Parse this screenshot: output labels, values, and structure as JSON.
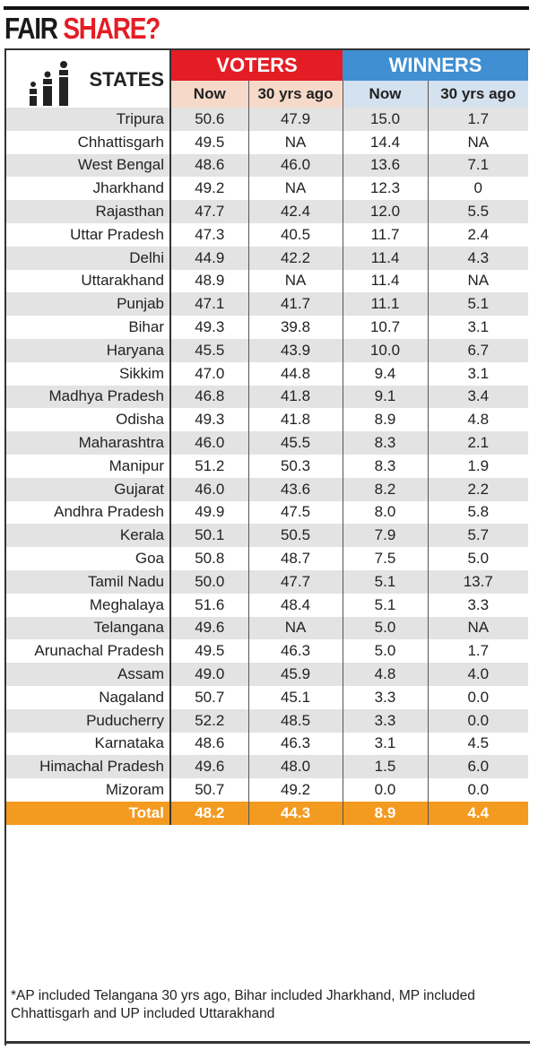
{
  "title": {
    "part1": "FAIR",
    "part2": "SHARE?"
  },
  "colors": {
    "voters": "#e41d25",
    "winners": "#3f8fd2",
    "total": "#f39a20",
    "title_accent": "#e41d25"
  },
  "icon": "people-bar-chart-icon",
  "chart_data": {
    "type": "table",
    "title": "FAIR SHARE?",
    "header": {
      "states": "STATES",
      "voters": "VOTERS",
      "winners": "WINNERS",
      "now": "Now",
      "ago": "30 yrs ago"
    },
    "rows": [
      [
        "Tripura",
        "50.6",
        "47.9",
        "15.0",
        "1.7"
      ],
      [
        "Chhattisgarh",
        "49.5",
        "NA",
        "14.4",
        "NA"
      ],
      [
        "West Bengal",
        "48.6",
        "46.0",
        "13.6",
        "7.1"
      ],
      [
        "Jharkhand",
        "49.2",
        "NA",
        "12.3",
        "0"
      ],
      [
        "Rajasthan",
        "47.7",
        "42.4",
        "12.0",
        "5.5"
      ],
      [
        "Uttar Pradesh",
        "47.3",
        "40.5",
        "11.7",
        "2.4"
      ],
      [
        "Delhi",
        "44.9",
        "42.2",
        "11.4",
        "4.3"
      ],
      [
        "Uttarakhand",
        "48.9",
        "NA",
        "11.4",
        "NA"
      ],
      [
        "Punjab",
        "47.1",
        "41.7",
        "11.1",
        "5.1"
      ],
      [
        "Bihar",
        "49.3",
        "39.8",
        "10.7",
        "3.1"
      ],
      [
        "Haryana",
        "45.5",
        "43.9",
        "10.0",
        "6.7"
      ],
      [
        "Sikkim",
        "47.0",
        "44.8",
        "9.4",
        "3.1"
      ],
      [
        "Madhya Pradesh",
        "46.8",
        "41.8",
        "9.1",
        "3.4"
      ],
      [
        "Odisha",
        "49.3",
        "41.8",
        "8.9",
        "4.8"
      ],
      [
        "Maharashtra",
        "46.0",
        "45.5",
        "8.3",
        "2.1"
      ],
      [
        "Manipur",
        "51.2",
        "50.3",
        "8.3",
        "1.9"
      ],
      [
        "Gujarat",
        "46.0",
        "43.6",
        "8.2",
        "2.2"
      ],
      [
        "Andhra Pradesh",
        "49.9",
        "47.5",
        "8.0",
        "5.8"
      ],
      [
        "Kerala",
        "50.1",
        "50.5",
        "7.9",
        "5.7"
      ],
      [
        "Goa",
        "50.8",
        "48.7",
        "7.5",
        "5.0"
      ],
      [
        "Tamil Nadu",
        "50.0",
        "47.7",
        "5.1",
        "13.7"
      ],
      [
        "Meghalaya",
        "51.6",
        "48.4",
        "5.1",
        "3.3"
      ],
      [
        "Telangana",
        "49.6",
        "NA",
        "5.0",
        "NA"
      ],
      [
        "Arunachal Pradesh",
        "49.5",
        "46.3",
        "5.0",
        "1.7"
      ],
      [
        "Assam",
        "49.0",
        "45.9",
        "4.8",
        "4.0"
      ],
      [
        "Nagaland",
        "50.7",
        "45.1",
        "3.3",
        "0.0"
      ],
      [
        "Puducherry",
        "52.2",
        "48.5",
        "3.3",
        "0.0"
      ],
      [
        "Karnataka",
        "48.6",
        "46.3",
        "3.1",
        "4.5"
      ],
      [
        "Himachal Pradesh",
        "49.6",
        "48.0",
        "1.5",
        "6.0"
      ],
      [
        "Mizoram",
        "50.7",
        "49.2",
        "0.0",
        "0.0"
      ]
    ],
    "total": [
      "Total",
      "48.2",
      "44.3",
      "8.9",
      "4.4"
    ]
  },
  "footnote": "*AP included Telangana 30 yrs ago, Bihar included Jharkhand, MP included Chhattisgarh and UP included Uttarakhand"
}
